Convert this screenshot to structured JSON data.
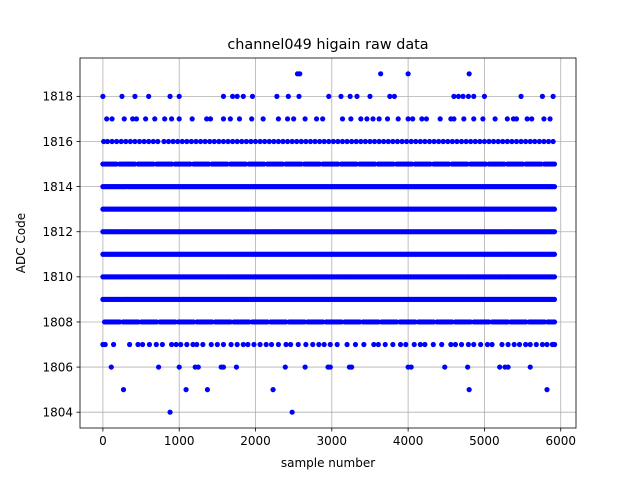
{
  "chart_data": {
    "type": "scatter",
    "title": "channel049 higain raw data",
    "xlabel": "sample number",
    "ylabel": "ADC Code",
    "xlim": [
      -300,
      6200
    ],
    "ylim": [
      1803.3,
      1819.7
    ],
    "xticks": [
      0,
      1000,
      2000,
      3000,
      4000,
      5000,
      6000
    ],
    "yticks": [
      1804,
      1806,
      1808,
      1810,
      1812,
      1814,
      1816,
      1818
    ],
    "grid": true,
    "marker_color": "#0000ff",
    "n_samples": 5940,
    "series": [
      {
        "name": "",
        "dense_levels": [
          1809,
          1810,
          1811,
          1812,
          1813,
          1814
        ],
        "frequent_levels": [
          1808,
          1815
        ],
        "sparse_levels": {
          "1807": [
            0,
            30,
            140,
            350,
            460,
            520,
            610,
            700,
            780,
            900,
            960,
            1020,
            1100,
            1180,
            1230,
            1310,
            1420,
            1500,
            1580,
            1680,
            1760,
            1840,
            1900,
            1980,
            2060,
            2140,
            2210,
            2300,
            2400,
            2460,
            2560,
            2660,
            2750,
            2830,
            2900,
            2980,
            3070,
            3200,
            3310,
            3420,
            3550,
            3610,
            3700,
            3800,
            3900,
            3970,
            4080,
            4160,
            4220,
            4330,
            4440,
            4560,
            4620,
            4700,
            4790,
            4860,
            4950,
            5040,
            5100,
            5230,
            5310,
            5390,
            5460,
            5540,
            5600,
            5680,
            5760,
            5820,
            5890,
            5920
          ],
          "1816": [
            10,
            60,
            120,
            180,
            240,
            300,
            360,
            420,
            480,
            540,
            600,
            660,
            720,
            800,
            860,
            920,
            980,
            1040,
            1100,
            1160,
            1220,
            1280,
            1340,
            1400,
            1460,
            1520,
            1580,
            1640,
            1700,
            1760,
            1820,
            1880,
            1940,
            2000,
            2060,
            2120,
            2180,
            2240,
            2300,
            2360,
            2420,
            2480,
            2540,
            2600,
            2660,
            2720,
            2780,
            2840,
            2900,
            2960,
            3020,
            3080,
            3140,
            3200,
            3260,
            3320,
            3380,
            3440,
            3500,
            3560,
            3620,
            3680,
            3740,
            3800,
            3860,
            3920,
            3980,
            4040,
            4100,
            4160,
            4220,
            4280,
            4340,
            4400,
            4460,
            4520,
            4580,
            4640,
            4700,
            4760,
            4820,
            4880,
            4940,
            5000,
            5060,
            5120,
            5180,
            5240,
            5300,
            5360,
            5420,
            5480,
            5540,
            5600,
            5660,
            5720,
            5780,
            5840,
            5900
          ],
          "1817": [
            50,
            120,
            280,
            390,
            440,
            560,
            680,
            810,
            900,
            1000,
            1170,
            1360,
            1410,
            1580,
            1670,
            1790,
            1950,
            2100,
            2300,
            2420,
            2500,
            2650,
            2800,
            2880,
            3140,
            3250,
            3380,
            3460,
            3540,
            3620,
            3730,
            3870,
            4000,
            4060,
            4180,
            4240,
            4420,
            4560,
            4600,
            4730,
            4860,
            4980,
            5140,
            5300,
            5380,
            5420,
            5560,
            5620,
            5780,
            5860
          ],
          "1818": [
            0,
            250,
            420,
            600,
            880,
            1000,
            1580,
            1700,
            1760,
            1840,
            1960,
            2280,
            2430,
            2570,
            2960,
            3120,
            3240,
            3330,
            3500,
            3760,
            3820,
            4600,
            4660,
            4720,
            4790,
            4860,
            5000,
            5480,
            5760,
            5900
          ],
          "1819": [
            2550,
            2580,
            3640,
            4000,
            4800
          ],
          "1806": [
            110,
            730,
            1000,
            1210,
            1250,
            1550,
            1580,
            1750,
            2390,
            2650,
            2950,
            2980,
            3230,
            3260,
            4000,
            4040,
            4480,
            4780,
            5200,
            5270,
            5310,
            5600
          ],
          "1805": [
            270,
            1090,
            1370,
            2230,
            4800,
            5820
          ],
          "1804": [
            880,
            2480
          ]
        }
      }
    ]
  }
}
